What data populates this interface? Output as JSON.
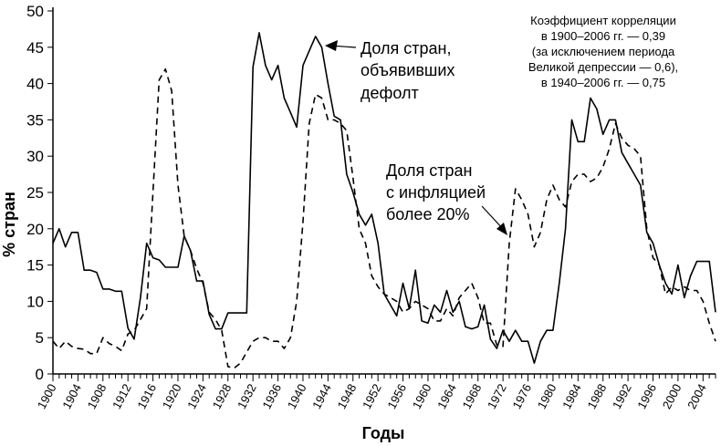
{
  "chart_data": {
    "type": "line",
    "xlabel": "Годы",
    "ylabel": "% стран",
    "xlim": [
      1900,
      2006
    ],
    "ylim": [
      0,
      50
    ],
    "yticks": [
      0,
      5,
      10,
      15,
      20,
      25,
      30,
      35,
      40,
      45,
      50
    ],
    "xticks": [
      1900,
      1904,
      1908,
      1912,
      1916,
      1920,
      1924,
      1928,
      1932,
      1936,
      1940,
      1944,
      1948,
      1952,
      1956,
      1960,
      1964,
      1968,
      1972,
      1976,
      1980,
      1984,
      1988,
      1992,
      1996,
      2000,
      2004
    ],
    "grid": false,
    "series": [
      {
        "name": "Доля стран, объявивших дефолт",
        "style": "solid",
        "x": [
          1900,
          1901,
          1902,
          1903,
          1904,
          1905,
          1906,
          1907,
          1908,
          1909,
          1910,
          1911,
          1912,
          1913,
          1914,
          1915,
          1916,
          1917,
          1918,
          1919,
          1920,
          1921,
          1922,
          1923,
          1924,
          1925,
          1926,
          1927,
          1928,
          1929,
          1930,
          1931,
          1932,
          1933,
          1934,
          1935,
          1936,
          1937,
          1938,
          1939,
          1940,
          1941,
          1942,
          1943,
          1944,
          1945,
          1946,
          1947,
          1948,
          1949,
          1950,
          1951,
          1952,
          1953,
          1954,
          1955,
          1956,
          1957,
          1958,
          1959,
          1960,
          1961,
          1962,
          1963,
          1964,
          1965,
          1966,
          1967,
          1968,
          1969,
          1970,
          1971,
          1972,
          1973,
          1974,
          1975,
          1976,
          1977,
          1978,
          1979,
          1980,
          1981,
          1982,
          1983,
          1984,
          1985,
          1986,
          1987,
          1988,
          1989,
          1990,
          1991,
          1992,
          1993,
          1994,
          1995,
          1996,
          1997,
          1998,
          1999,
          2000,
          2001,
          2002,
          2003,
          2004,
          2005,
          2006
        ],
        "values": [
          18,
          20,
          17.5,
          19.5,
          19.5,
          14.3,
          14.3,
          14,
          11.7,
          11.7,
          11.4,
          11.4,
          6.3,
          4.8,
          10.5,
          18,
          16,
          15.7,
          14.7,
          14.7,
          14.7,
          19,
          17,
          12.8,
          12.8,
          8.2,
          6.2,
          6.2,
          8.4,
          8.4,
          8.4,
          8.4,
          42.3,
          47,
          42.5,
          40.5,
          42.5,
          38,
          36,
          34,
          42.5,
          44.5,
          46.5,
          45,
          40,
          35.5,
          35,
          27.5,
          25,
          22,
          20.5,
          22,
          18,
          11,
          9.5,
          8,
          12.5,
          9,
          14.3,
          7.3,
          7,
          9.5,
          8.5,
          11.5,
          8.5,
          10,
          6.5,
          6.2,
          6.5,
          9.5,
          4.8,
          3.5,
          6,
          4.5,
          6,
          4.5,
          4.5,
          1.5,
          4.5,
          6,
          6,
          12.5,
          20,
          35,
          32,
          32,
          38,
          36.5,
          33,
          35,
          35,
          30.5,
          29,
          27.5,
          26,
          19.5,
          18,
          15,
          12.5,
          11,
          15,
          10.5,
          13.5,
          15.5,
          15.5,
          15.5,
          8.5
        ]
      },
      {
        "name": "Доля стран с инфляцией более 20%",
        "style": "dashed",
        "x": [
          1900,
          1901,
          1902,
          1903,
          1904,
          1905,
          1906,
          1907,
          1908,
          1909,
          1910,
          1911,
          1912,
          1913,
          1914,
          1915,
          1916,
          1917,
          1918,
          1919,
          1920,
          1921,
          1922,
          1923,
          1924,
          1925,
          1926,
          1927,
          1928,
          1929,
          1930,
          1931,
          1932,
          1933,
          1934,
          1935,
          1936,
          1937,
          1938,
          1939,
          1940,
          1941,
          1942,
          1943,
          1944,
          1945,
          1946,
          1947,
          1948,
          1949,
          1950,
          1951,
          1952,
          1953,
          1954,
          1955,
          1956,
          1957,
          1958,
          1959,
          1960,
          1961,
          1962,
          1963,
          1964,
          1965,
          1966,
          1967,
          1968,
          1969,
          1970,
          1971,
          1972,
          1973,
          1974,
          1975,
          1976,
          1977,
          1978,
          1979,
          1980,
          1981,
          1982,
          1983,
          1984,
          1985,
          1986,
          1987,
          1988,
          1989,
          1990,
          1991,
          1992,
          1993,
          1994,
          1995,
          1996,
          1997,
          1998,
          1999,
          2000,
          2001,
          2002,
          2003,
          2004,
          2005,
          2006
        ],
        "values": [
          4.5,
          3.5,
          4.5,
          3.8,
          3.5,
          3.4,
          2.8,
          2.8,
          5,
          4.2,
          3.8,
          3.2,
          5.5,
          6,
          7.5,
          9,
          25,
          40.5,
          42,
          39,
          26,
          19,
          17,
          14.5,
          12.5,
          8.5,
          7.5,
          6,
          1,
          0.8,
          1.5,
          3,
          4.5,
          5,
          5,
          4.5,
          4.5,
          3.5,
          5,
          10,
          21,
          34.5,
          38.5,
          38,
          35,
          35,
          34.5,
          33.5,
          27,
          20,
          18,
          13.5,
          12,
          11,
          10.5,
          10,
          8.5,
          9,
          10,
          9.5,
          9,
          7.3,
          7.3,
          9,
          8,
          10.5,
          11.5,
          12.5,
          10.5,
          7,
          7,
          4,
          3.8,
          18,
          25.5,
          24,
          22,
          17.5,
          19.5,
          24,
          26,
          24,
          23,
          26.5,
          27.5,
          27.5,
          26.5,
          27,
          28.5,
          31,
          34.5,
          32.5,
          31.5,
          31,
          30,
          20,
          16,
          15,
          11,
          12,
          11.5,
          12,
          11.5,
          11.5,
          10,
          7,
          4.5
        ]
      }
    ],
    "annotations": {
      "default_label": [
        "Доля стран,",
        "объявивших",
        "дефолт"
      ],
      "inflation_label": [
        "Доля стран",
        "с инфляцией",
        "более 20%"
      ],
      "correlation_note": [
        "Коэффициент корреляции",
        "в 1900–2006 гг. — 0,39",
        "(за исключением периода",
        "Великой депрессии — 0,6),",
        "в 1940–2006 гг. — 0,75"
      ]
    }
  }
}
